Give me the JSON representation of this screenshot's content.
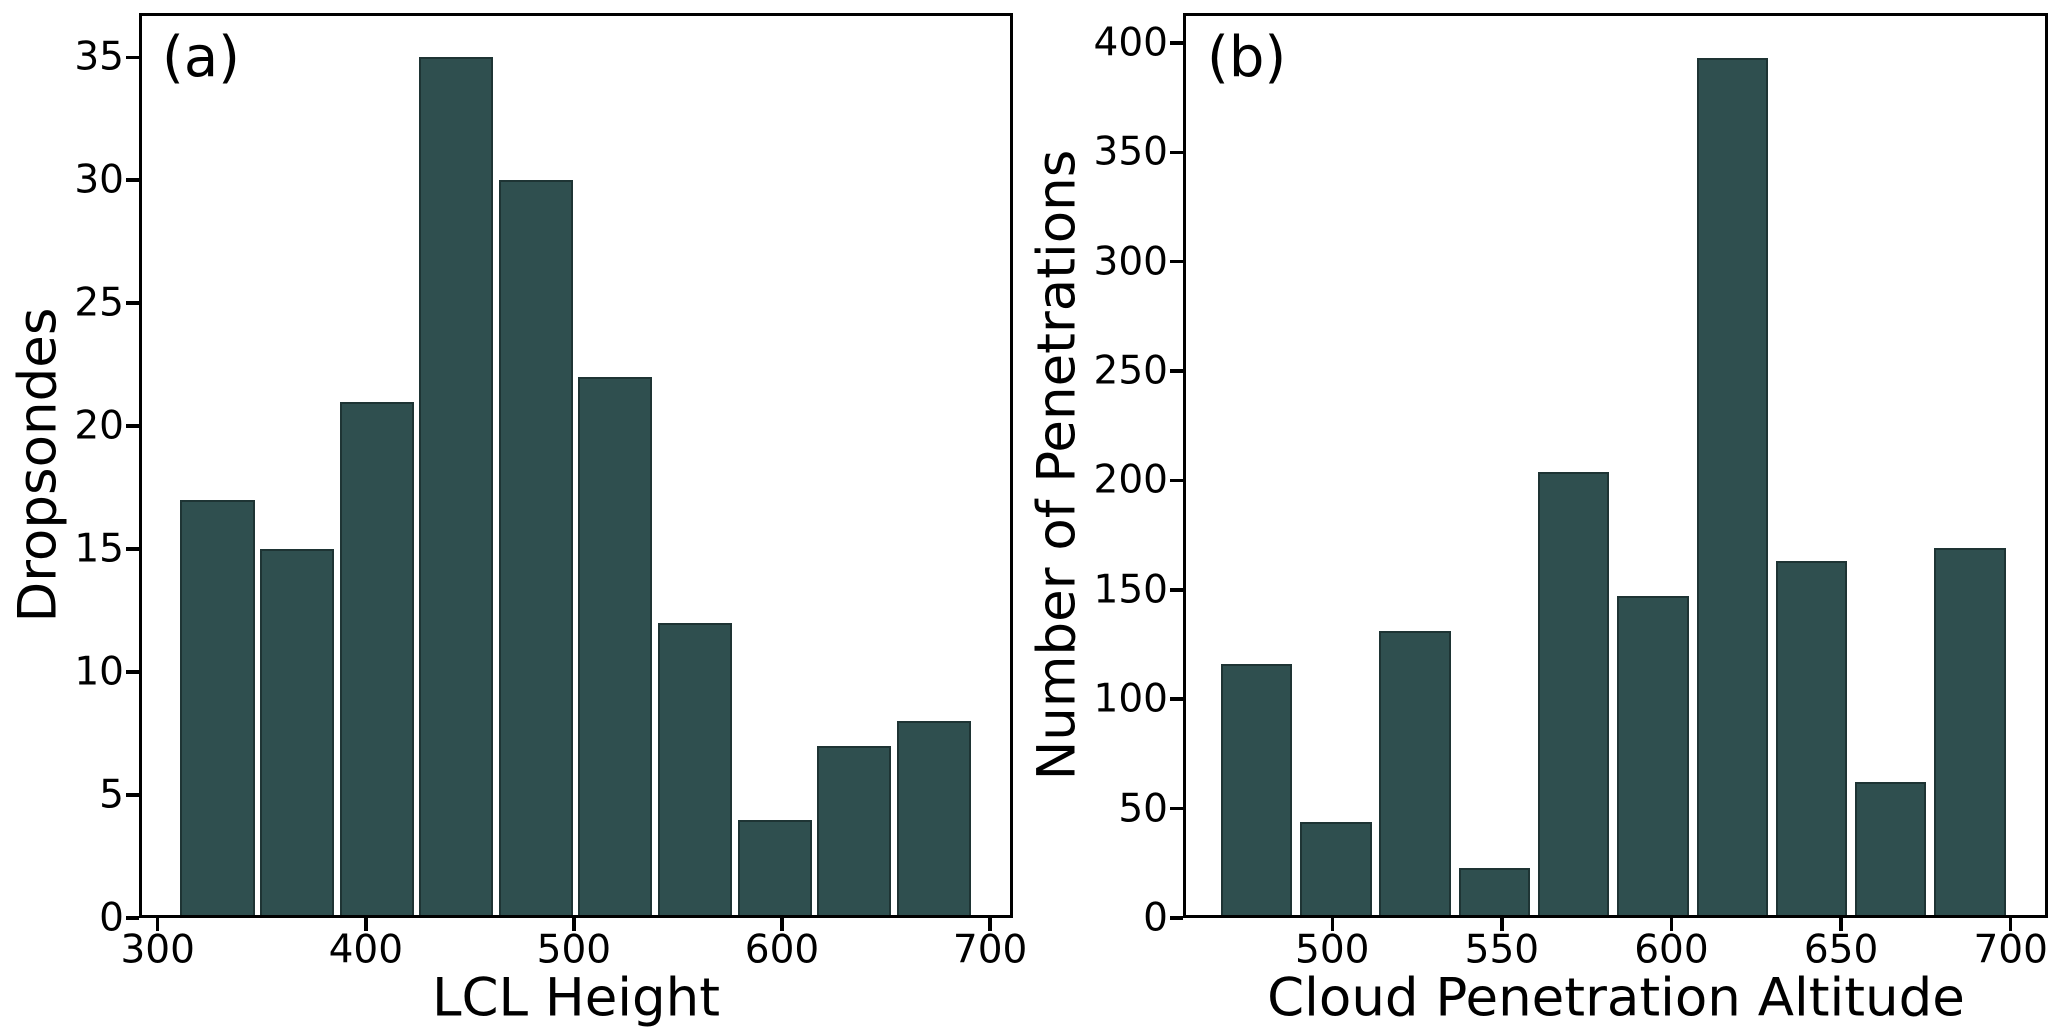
{
  "figure": {
    "background": "#ffffff",
    "bar_fill": "#2F4F4F",
    "bar_edge": "#1e3434",
    "axis_color": "#000000"
  },
  "chart_data": [
    {
      "type": "bar",
      "panel_label": "(a)",
      "xlabel": "LCL Height",
      "ylabel": "Dropsondes",
      "bin_start": 309.6,
      "bin_width": 38.25,
      "rwidth": 0.93,
      "categories": [
        "310-348",
        "348-386",
        "386-424",
        "424-463",
        "463-501",
        "501-539",
        "539-577",
        "577-616",
        "616-654",
        "654-692"
      ],
      "values": [
        17,
        15,
        21,
        35,
        30,
        22,
        12,
        4,
        7,
        8
      ],
      "xlim": [
        291,
        711
      ],
      "ylim": [
        0,
        36.8
      ],
      "xticks": [
        300,
        400,
        500,
        600,
        700
      ],
      "yticks": [
        0,
        5,
        10,
        15,
        20,
        25,
        30,
        35
      ],
      "grid": false,
      "legend": false
    },
    {
      "type": "bar",
      "panel_label": "(b)",
      "xlabel": "Cloud Penetration Altitude",
      "ylabel": "Number of Penetrations",
      "bin_start": 466,
      "bin_width": 23.37,
      "rwidth": 0.9,
      "categories": [
        "466-489",
        "489-513",
        "513-536",
        "536-559",
        "559-583",
        "583-606",
        "606-630",
        "630-653",
        "653-676",
        "676-700"
      ],
      "values": [
        116,
        44,
        131,
        23,
        204,
        147,
        393,
        163,
        62,
        169
      ],
      "xlim": [
        456,
        711
      ],
      "ylim": [
        0,
        413.7
      ],
      "xticks": [
        500,
        550,
        600,
        650,
        700
      ],
      "yticks": [
        0,
        50,
        100,
        150,
        200,
        250,
        300,
        350,
        400
      ],
      "grid": false,
      "legend": false
    }
  ]
}
